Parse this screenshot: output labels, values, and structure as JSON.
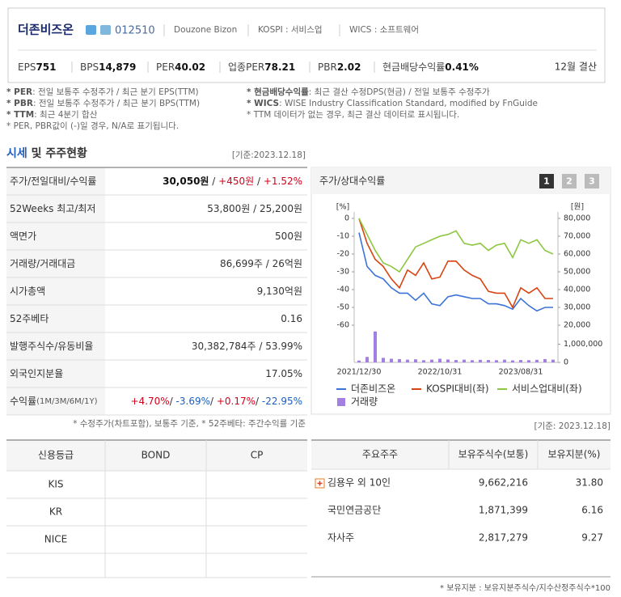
{
  "header": {
    "name": "더존비즈온",
    "code": "012510",
    "english_name": "Douzone Bizon",
    "market": "KOSPI : 서비스업",
    "wics": "WICS : 소프트웨어",
    "metrics": [
      {
        "label": "EPS",
        "value": "751"
      },
      {
        "label": "BPS",
        "value": "14,879"
      },
      {
        "label": "PER",
        "value": "40.02"
      },
      {
        "label": "업종PER",
        "value": "78.21"
      },
      {
        "label": "PBR",
        "value": "2.02"
      },
      {
        "label": "현금배당수익률",
        "value": "0.41%"
      }
    ],
    "fiscal": "12월 결산"
  },
  "notes": {
    "left": [
      {
        "key": "* PER",
        "text": ": 전일 보통주 수정주가 / 최근 분기 EPS(TTM)"
      },
      {
        "key": "* PBR",
        "text": ": 전일 보통주 수정주가 / 최근 분기 BPS(TTM)"
      },
      {
        "key": "* TTM",
        "text": ": 최근 4분기 합산"
      },
      {
        "text": "* PER, PBR값이 (-)일 경우, N/A로 표기됩니다."
      }
    ],
    "right": [
      {
        "key": "* 현금배당수익률",
        "text": ": 최근 결산 수정DPS(현금) / 전일 보통주 수정주가"
      },
      {
        "key": "* WICS",
        "text": ": WISE Industry Classification Standard, modified by FnGuide"
      },
      {
        "text": "* TTM 데이터가 없는 경우, 최근 결산 데이터로 표시됩니다."
      }
    ]
  },
  "market_section": {
    "title_highlight": "시세",
    "title_rest": " 및 주주현황",
    "date": "[기준:2023.12.18]",
    "rows": [
      {
        "label": "주가/전일대비/수익률",
        "parts": [
          {
            "text": "30,050원",
            "tone": "bold"
          },
          {
            "text": " / ",
            "tone": "plain"
          },
          {
            "text": "+450원",
            "tone": "up"
          },
          {
            "text": " / ",
            "tone": "plain"
          },
          {
            "text": "+1.52%",
            "tone": "up"
          }
        ]
      },
      {
        "label": "52Weeks 최고/최저",
        "parts": [
          {
            "text": "53,800원 / 25,200원",
            "tone": "plain"
          }
        ]
      },
      {
        "label": "액면가",
        "parts": [
          {
            "text": "500원",
            "tone": "plain"
          }
        ]
      },
      {
        "label": "거래량/거래대금",
        "parts": [
          {
            "text": "86,699주 / 26억원",
            "tone": "plain"
          }
        ]
      },
      {
        "label": "시가총액",
        "parts": [
          {
            "text": "9,130억원",
            "tone": "plain"
          }
        ]
      },
      {
        "label": "52주베타",
        "parts": [
          {
            "text": "0.16",
            "tone": "plain"
          }
        ]
      },
      {
        "label": "발행주식수/유동비율",
        "parts": [
          {
            "text": "30,382,784주 / 53.99%",
            "tone": "plain"
          }
        ]
      },
      {
        "label": "외국인지분율",
        "parts": [
          {
            "text": "17.05%",
            "tone": "plain"
          }
        ]
      },
      {
        "label": "수익률",
        "sublabel": "(1M/3M/6M/1Y)",
        "parts": [
          {
            "text": "+4.70%",
            "tone": "up"
          },
          {
            "text": "/ ",
            "tone": "plain"
          },
          {
            "text": "-3.69%",
            "tone": "down"
          },
          {
            "text": "/ ",
            "tone": "plain"
          },
          {
            "text": "+0.17%",
            "tone": "up"
          },
          {
            "text": "/ ",
            "tone": "plain"
          },
          {
            "text": "-22.95%",
            "tone": "down"
          }
        ]
      }
    ],
    "note": "* 수정주가(차트포함), 보통주 기준, * 52주베타: 주간수익률 기준"
  },
  "chart_data": {
    "type": "line",
    "title": "주가/상대수익률",
    "tabs": [
      "1",
      "2",
      "3"
    ],
    "y_unit": "[%]",
    "y2_unit": "[원]",
    "categories": [
      "2021/12/30",
      null,
      null,
      null,
      null,
      null,
      null,
      null,
      null,
      null,
      "2022/10/31",
      null,
      null,
      null,
      null,
      null,
      null,
      null,
      null,
      null,
      "2023/08/31",
      null,
      null,
      null,
      null
    ],
    "ylim": [
      -60,
      0
    ],
    "yticks": [
      0,
      -10,
      -20,
      -30,
      -40,
      -50,
      -60
    ],
    "y2lim": [
      20000,
      80000
    ],
    "y2ticks": [
      {
        "value": 80000,
        "label": "80,000"
      },
      {
        "value": 70000,
        "label": "70,000"
      },
      {
        "value": 60000,
        "label": "60,000"
      },
      {
        "value": 50000,
        "label": "50,000"
      },
      {
        "value": 40000,
        "label": "40,000"
      },
      {
        "value": 30000,
        "label": "30,000"
      },
      {
        "value": 20000,
        "label": "20,000"
      }
    ],
    "volume_lim": [
      0,
      2000000
    ],
    "volume_ticks": [
      {
        "value": 1000000,
        "label": "1,000,000"
      },
      0
    ],
    "series": [
      {
        "name": "더존비즈온",
        "color": "#3b73d9",
        "axis": "y2",
        "values": [
          72000,
          53000,
          48000,
          46000,
          41000,
          38000,
          38000,
          34000,
          38000,
          32000,
          31000,
          36000,
          37000,
          36000,
          35000,
          35000,
          32000,
          32000,
          31000,
          29000,
          35000,
          31000,
          28000,
          30000,
          30000
        ]
      },
      {
        "name": "KOSPI대비(좌)",
        "color": "#d9430f",
        "values": [
          0,
          -14,
          -23,
          -27,
          -34,
          -39,
          -29,
          -32,
          -25,
          -34,
          -33,
          -24,
          -24,
          -29,
          -32,
          -34,
          -41,
          -42,
          -42,
          -50,
          -39,
          -42,
          -39,
          -45,
          -45
        ]
      },
      {
        "name": "서비스업대비(좌)",
        "color": "#8dc63f",
        "values": [
          0,
          -9,
          -18,
          -25,
          -27,
          -30,
          -23,
          -16,
          -14,
          -12,
          -10,
          -9,
          -7,
          -14,
          -15,
          -14,
          -18,
          -15,
          -14,
          -22,
          -12,
          -14,
          -12,
          -18,
          -20
        ]
      },
      {
        "name": "거래량",
        "color": "#a27fe0",
        "axis": "volume",
        "values": [
          100000,
          300000,
          1700000,
          250000,
          200000,
          180000,
          150000,
          170000,
          120000,
          150000,
          200000,
          160000,
          130000,
          150000,
          120000,
          140000,
          130000,
          120000,
          150000,
          110000,
          130000,
          120000,
          140000,
          180000,
          150000
        ]
      }
    ]
  },
  "credit": {
    "headers": [
      "신용등급",
      "BOND",
      "CP"
    ],
    "rows": [
      "KIS",
      "KR",
      "NICE"
    ]
  },
  "shareholders": {
    "date": "[기준: 2023.12.18]",
    "headers": [
      "주요주주",
      "보유주식수(보통)",
      "보유지분(%)"
    ],
    "rows": [
      [
        "김용우 외 10인",
        "9,662,216",
        "31.80"
      ],
      [
        "국민연금공단",
        "1,871,399",
        "6.16"
      ],
      [
        "자사주",
        "2,817,279",
        "9.27"
      ]
    ],
    "footnote": "* 보유지분 : 보유지분주식수/지수산정주식수*100"
  }
}
